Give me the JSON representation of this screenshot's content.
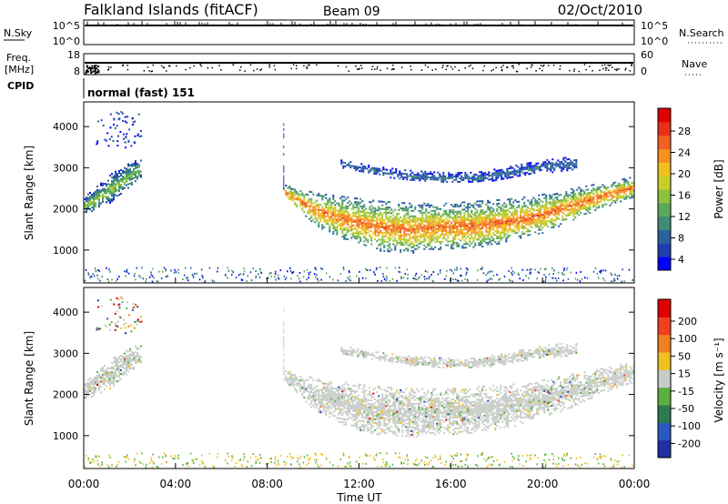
{
  "header": {
    "title": "Falkland Islands (fitACF)",
    "beam": "Beam 09",
    "date": "02/Oct/2010"
  },
  "panels": {
    "nsky": {
      "left_label": "N.Sky",
      "left_ticks": [
        "10^5",
        "10^0"
      ],
      "right_label": "N.Search",
      "right_ticks": [
        "10^5",
        "10^0"
      ]
    },
    "freq": {
      "left_label_1": "Freq.",
      "left_label_2": "[MHz]",
      "left_ticks": [
        "18",
        "8"
      ],
      "right_label": "Nave",
      "right_ticks": [
        "60",
        "0"
      ]
    },
    "cpid": {
      "label": "CPID",
      "text": "normal (fast) 151"
    }
  },
  "power_colorbar": {
    "label": "Power [dB]",
    "ticks": [
      "28",
      "24",
      "20",
      "16",
      "12",
      "8",
      "4"
    ],
    "colors": [
      "#0000ff",
      "#1d3fb0",
      "#2a62a0",
      "#3f8c74",
      "#5aa85a",
      "#8cc23e",
      "#c8d028",
      "#f0c020",
      "#f59020",
      "#f06020",
      "#e83018",
      "#e00000"
    ]
  },
  "velocity_colorbar": {
    "label": "Velocity [m s⁻¹]",
    "ticks": [
      "200",
      "100",
      "50",
      "15",
      "-15",
      "-50",
      "-100",
      "-200"
    ],
    "colors": [
      "#2030a0",
      "#2a58c0",
      "#2e7a50",
      "#5cb040",
      "#c8ccc8",
      "#f0c020",
      "#f08020",
      "#f04020",
      "#e00000"
    ]
  },
  "chart_data": {
    "type": "heatmap",
    "xlabel": "Time UT",
    "x_ticks": [
      "00:00",
      "04:00",
      "08:00",
      "12:00",
      "16:00",
      "20:00",
      "00:00"
    ],
    "x_range_hours": [
      0,
      24
    ],
    "ylabel": "Slant Range [km]",
    "y_ticks": [
      1000,
      2000,
      3000,
      4000
    ],
    "ylim": [
      200,
      4600
    ],
    "echo_regions": [
      {
        "name": "early",
        "start_h": 0.0,
        "end_h": 2.5,
        "lower_km": [
          1900,
          2000,
          2200,
          2500,
          2800
        ],
        "upper_km": [
          2300,
          2600,
          2900,
          3100,
          3250
        ],
        "peak_power_db": 16
      },
      {
        "name": "main",
        "start_h": 8.7,
        "end_h": 24.0,
        "lower_km": [
          2300,
          1600,
          1250,
          1000,
          950,
          1050,
          1050,
          1200,
          1400,
          1700,
          2050,
          2300
        ],
        "upper_km": [
          2600,
          2400,
          2300,
          2200,
          2150,
          2150,
          2200,
          2250,
          2350,
          2500,
          2650,
          2800
        ],
        "peak_power_db": 28
      },
      {
        "name": "upper",
        "start_h": 11.2,
        "end_h": 21.5,
        "lower_km": [
          3000,
          2850,
          2700,
          2650,
          2650,
          2750,
          2900,
          2950
        ],
        "upper_km": [
          3200,
          3050,
          2950,
          2900,
          2900,
          3050,
          3200,
          3300
        ],
        "peak_power_db": 8
      }
    ]
  }
}
